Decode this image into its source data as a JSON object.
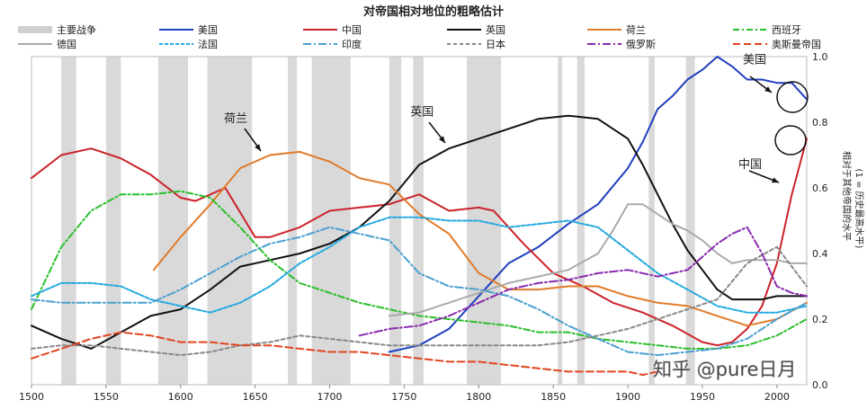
{
  "chart_data": {
    "type": "line",
    "title": "对帝国相对地位的粗略估计",
    "xlim": [
      1500,
      2020
    ],
    "ylim": [
      0,
      1.0
    ],
    "xticks": [
      1500,
      1550,
      1600,
      1650,
      1700,
      1750,
      1800,
      1850,
      1900,
      1950,
      2000
    ],
    "yticks": [
      "0.0",
      "0.2",
      "0.4",
      "0.6",
      "0.8",
      "1.0"
    ],
    "ylabel": "相对于其他帝国的水平",
    "ylabel2": "(1 = 历史最高水平)",
    "legend_wars": "主要战争",
    "wars": [
      [
        1520,
        1530
      ],
      [
        1550,
        1560
      ],
      [
        1585,
        1605
      ],
      [
        1618,
        1648
      ],
      [
        1672,
        1678
      ],
      [
        1688,
        1714
      ],
      [
        1740,
        1748
      ],
      [
        1756,
        1763
      ],
      [
        1792,
        1815
      ],
      [
        1853,
        1856
      ],
      [
        1866,
        1871
      ],
      [
        1914,
        1918
      ],
      [
        1939,
        1945
      ]
    ],
    "series": [
      {
        "name": "美国",
        "color": "#1f3fbf",
        "dash": "",
        "x": [
          1740,
          1760,
          1780,
          1800,
          1820,
          1840,
          1860,
          1880,
          1900,
          1910,
          1920,
          1930,
          1940,
          1950,
          1960,
          1970,
          1980,
          1990,
          2000,
          2010,
          2020
        ],
        "y": [
          0.1,
          0.12,
          0.17,
          0.27,
          0.37,
          0.42,
          0.49,
          0.55,
          0.66,
          0.74,
          0.84,
          0.88,
          0.93,
          0.96,
          1.0,
          0.97,
          0.93,
          0.93,
          0.92,
          0.92,
          0.87
        ]
      },
      {
        "name": "中国",
        "color": "#cc2229",
        "dash": "",
        "x": [
          1500,
          1520,
          1540,
          1560,
          1580,
          1600,
          1610,
          1630,
          1650,
          1660,
          1680,
          1700,
          1720,
          1740,
          1760,
          1780,
          1800,
          1810,
          1830,
          1850,
          1870,
          1890,
          1910,
          1930,
          1950,
          1960,
          1970,
          1980,
          1990,
          2000,
          2010,
          2020
        ],
        "y": [
          0.63,
          0.7,
          0.72,
          0.69,
          0.64,
          0.57,
          0.56,
          0.6,
          0.45,
          0.45,
          0.48,
          0.53,
          0.54,
          0.55,
          0.58,
          0.53,
          0.54,
          0.53,
          0.43,
          0.34,
          0.3,
          0.25,
          0.22,
          0.18,
          0.13,
          0.12,
          0.13,
          0.17,
          0.24,
          0.37,
          0.58,
          0.75
        ]
      },
      {
        "name": "英国",
        "color": "#111111",
        "dash": "",
        "x": [
          1500,
          1520,
          1540,
          1560,
          1580,
          1600,
          1620,
          1640,
          1660,
          1680,
          1700,
          1720,
          1740,
          1760,
          1780,
          1800,
          1820,
          1840,
          1860,
          1880,
          1900,
          1910,
          1920,
          1930,
          1940,
          1950,
          1960,
          1970,
          1980,
          1990,
          2000,
          2010,
          2020
        ],
        "y": [
          0.18,
          0.14,
          0.11,
          0.16,
          0.21,
          0.23,
          0.29,
          0.36,
          0.38,
          0.4,
          0.43,
          0.48,
          0.56,
          0.67,
          0.72,
          0.75,
          0.78,
          0.81,
          0.82,
          0.81,
          0.75,
          0.67,
          0.58,
          0.49,
          0.41,
          0.35,
          0.29,
          0.26,
          0.26,
          0.26,
          0.27,
          0.27,
          0.27
        ]
      },
      {
        "name": "荷兰",
        "color": "#e07b2a",
        "dash": "",
        "x": [
          1582,
          1600,
          1620,
          1640,
          1660,
          1680,
          1700,
          1720,
          1740,
          1760,
          1780,
          1800,
          1820,
          1840,
          1860,
          1880,
          1900,
          1920,
          1940,
          1960,
          1980,
          2000,
          2020
        ],
        "y": [
          0.35,
          0.45,
          0.55,
          0.66,
          0.7,
          0.71,
          0.68,
          0.63,
          0.61,
          0.52,
          0.46,
          0.34,
          0.29,
          0.29,
          0.3,
          0.3,
          0.27,
          0.25,
          0.24,
          0.21,
          0.18,
          0.2,
          0.25
        ]
      },
      {
        "name": "西班牙",
        "color": "#2bbf2b",
        "dash": "7,3,2,3",
        "x": [
          1500,
          1520,
          1540,
          1560,
          1580,
          1600,
          1620,
          1640,
          1660,
          1680,
          1700,
          1720,
          1740,
          1760,
          1780,
          1800,
          1820,
          1840,
          1860,
          1880,
          1900,
          1920,
          1940,
          1960,
          1980,
          2000,
          2020
        ],
        "y": [
          0.23,
          0.42,
          0.53,
          0.58,
          0.58,
          0.59,
          0.57,
          0.48,
          0.38,
          0.31,
          0.28,
          0.25,
          0.23,
          0.21,
          0.2,
          0.19,
          0.18,
          0.16,
          0.16,
          0.14,
          0.13,
          0.12,
          0.11,
          0.11,
          0.12,
          0.15,
          0.2
        ]
      },
      {
        "name": "德国",
        "color": "#aaaaaa",
        "dash": "",
        "x": [
          1740,
          1760,
          1780,
          1800,
          1820,
          1840,
          1860,
          1880,
          1890,
          1900,
          1910,
          1920,
          1930,
          1940,
          1950,
          1960,
          1970,
          1980,
          1990,
          2000,
          2010,
          2020
        ],
        "y": [
          0.21,
          0.22,
          0.25,
          0.28,
          0.31,
          0.33,
          0.35,
          0.4,
          0.47,
          0.55,
          0.55,
          0.52,
          0.49,
          0.47,
          0.44,
          0.4,
          0.37,
          0.38,
          0.38,
          0.38,
          0.37,
          0.37
        ]
      },
      {
        "name": "法国",
        "color": "#22a9e0",
        "dash": "4,2",
        "x": [
          1500,
          1520,
          1540,
          1560,
          1580,
          1600,
          1620,
          1640,
          1660,
          1680,
          1700,
          1720,
          1740,
          1760,
          1780,
          1800,
          1820,
          1840,
          1860,
          1880,
          1900,
          1920,
          1940,
          1960,
          1980,
          2000,
          2020
        ],
        "y": [
          0.27,
          0.31,
          0.31,
          0.3,
          0.26,
          0.24,
          0.22,
          0.25,
          0.3,
          0.37,
          0.42,
          0.48,
          0.51,
          0.51,
          0.5,
          0.5,
          0.48,
          0.49,
          0.5,
          0.48,
          0.41,
          0.34,
          0.29,
          0.24,
          0.22,
          0.22,
          0.24
        ]
      },
      {
        "name": "印度",
        "color": "#4a9fd0",
        "dash": "9,3,2,3",
        "x": [
          1500,
          1520,
          1540,
          1560,
          1580,
          1600,
          1620,
          1640,
          1660,
          1680,
          1700,
          1720,
          1740,
          1760,
          1780,
          1800,
          1820,
          1840,
          1860,
          1880,
          1900,
          1920,
          1940,
          1960,
          1980,
          2000,
          2020
        ],
        "y": [
          0.26,
          0.25,
          0.25,
          0.25,
          0.25,
          0.29,
          0.34,
          0.39,
          0.43,
          0.45,
          0.48,
          0.46,
          0.44,
          0.34,
          0.3,
          0.29,
          0.27,
          0.23,
          0.18,
          0.14,
          0.1,
          0.09,
          0.1,
          0.11,
          0.14,
          0.2,
          0.25
        ]
      },
      {
        "name": "日本",
        "color": "#888888",
        "dash": "4,3",
        "x": [
          1500,
          1520,
          1540,
          1560,
          1580,
          1600,
          1620,
          1640,
          1660,
          1680,
          1700,
          1720,
          1740,
          1760,
          1780,
          1800,
          1820,
          1840,
          1860,
          1880,
          1900,
          1920,
          1940,
          1960,
          1980,
          2000,
          2020
        ],
        "y": [
          0.11,
          0.12,
          0.12,
          0.11,
          0.1,
          0.09,
          0.1,
          0.12,
          0.13,
          0.15,
          0.14,
          0.13,
          0.12,
          0.12,
          0.12,
          0.12,
          0.12,
          0.12,
          0.13,
          0.15,
          0.17,
          0.2,
          0.23,
          0.26,
          0.37,
          0.42,
          0.3
        ]
      },
      {
        "name": "俄罗斯",
        "color": "#8a2bb0",
        "dash": "9,3,2,3",
        "x": [
          1720,
          1740,
          1760,
          1780,
          1800,
          1820,
          1840,
          1860,
          1880,
          1900,
          1920,
          1940,
          1960,
          1970,
          1980,
          1990,
          2000,
          2010,
          2020
        ],
        "y": [
          0.15,
          0.17,
          0.18,
          0.21,
          0.25,
          0.29,
          0.31,
          0.32,
          0.34,
          0.35,
          0.33,
          0.35,
          0.43,
          0.46,
          0.48,
          0.4,
          0.3,
          0.28,
          0.27
        ]
      },
      {
        "name": "奥斯曼帝国",
        "color": "#e0451f",
        "dash": "8,4",
        "x": [
          1500,
          1520,
          1540,
          1560,
          1580,
          1600,
          1620,
          1640,
          1660,
          1680,
          1700,
          1720,
          1740,
          1760,
          1780,
          1800,
          1820,
          1840,
          1860,
          1880,
          1900,
          1910,
          1920
        ],
        "y": [
          0.08,
          0.11,
          0.14,
          0.16,
          0.15,
          0.13,
          0.13,
          0.12,
          0.12,
          0.11,
          0.1,
          0.1,
          0.09,
          0.08,
          0.07,
          0.07,
          0.06,
          0.05,
          0.04,
          0.04,
          0.04,
          0.03,
          0.04
        ]
      }
    ],
    "annotations": [
      {
        "text": "荷兰",
        "x": 1637,
        "y": 0.8
      },
      {
        "text": "英国",
        "x": 1762,
        "y": 0.82
      },
      {
        "text": "美国",
        "x": 1985,
        "y": 0.98
      },
      {
        "text": "中国",
        "x": 1982,
        "y": 0.66
      }
    ],
    "watermark": "知乎 @pure日月"
  }
}
